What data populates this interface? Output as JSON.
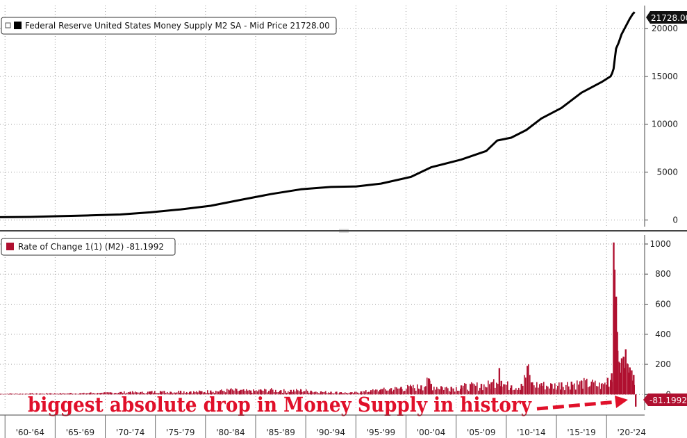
{
  "colors": {
    "m2_line": "#000000",
    "roc_bars": "#b01030",
    "annotation": "#e0102a",
    "grid": "#9a9a9a",
    "tag_top_bg": "#111111",
    "tag_bottom_bg": "#b01030",
    "divider": "#444444"
  },
  "chart_data": [
    {
      "type": "line",
      "title": "",
      "legend": "Federal Reserve United States Money Supply M2 SA - Mid Price 21728.00",
      "legend_placement": "top-left",
      "last_value_tag": "21728.00",
      "series": [
        {
          "name": "Federal Reserve United States Money Supply M2 SA - Mid Price",
          "x": [
            1959.0,
            1962.0,
            1965.0,
            1968.0,
            1971.0,
            1974.0,
            1977.0,
            1980.0,
            1983.0,
            1986.0,
            1989.0,
            1992.0,
            1994.5,
            1997.0,
            2000.0,
            2002.0,
            2005.0,
            2007.5,
            2008.6,
            2010.0,
            2011.5,
            2013.0,
            2015.0,
            2017.0,
            2019.0,
            2019.9,
            2020.05,
            2020.2,
            2020.45,
            2020.7,
            2021.0,
            2021.4,
            2021.8,
            2022.1,
            2022.3
          ],
          "y": [
            290,
            320,
            400,
            480,
            570,
            800,
            1100,
            1480,
            2100,
            2700,
            3200,
            3450,
            3500,
            3800,
            4500,
            5500,
            6300,
            7200,
            8300,
            8600,
            9400,
            10600,
            11700,
            13300,
            14400,
            15000,
            15300,
            15800,
            17900,
            18500,
            19400,
            20200,
            21000,
            21500,
            21728
          ]
        }
      ],
      "y_ticks": [
        "0",
        "5000",
        "10000",
        "15000",
        "20000"
      ],
      "ylim": [
        -700,
        22400
      ],
      "grid": true
    },
    {
      "type": "bar",
      "title": "",
      "legend": "Rate of Change 1(1) (M2) -81.1992",
      "legend_placement": "top-left",
      "last_value_tag": "-81.1992",
      "series": [
        {
          "name": "Rate of Change 1(1) (M2)",
          "x": [
            1959.0,
            1960.0,
            1961.0,
            1962.0,
            1963.0,
            1964.0,
            1965.0,
            1966.0,
            1967.0,
            1968.0,
            1969.0,
            1970.0,
            1971.0,
            1972.0,
            1973.0,
            1974.0,
            1975.0,
            1976.0,
            1977.0,
            1978.0,
            1979.0,
            1980.0,
            1981.0,
            1982.0,
            1983.0,
            1984.0,
            1985.0,
            1986.0,
            1987.0,
            1988.0,
            1989.0,
            1990.0,
            1991.0,
            1992.0,
            1993.0,
            1994.0,
            1995.0,
            1996.0,
            1997.0,
            1998.0,
            1999.0,
            2000.0,
            2001.0,
            2001.8,
            2002.0,
            2003.0,
            2004.0,
            2005.0,
            2006.0,
            2007.0,
            2008.0,
            2008.8,
            2009.0,
            2010.0,
            2011.0,
            2011.6,
            2012.0,
            2013.0,
            2014.0,
            2015.0,
            2016.0,
            2017.0,
            2018.0,
            2019.0,
            2019.6,
            2020.0,
            2020.2,
            2020.3,
            2020.45,
            2020.6,
            2020.8,
            2021.0,
            2021.2,
            2021.4,
            2021.6,
            2021.8,
            2022.0,
            2022.2,
            2022.4
          ],
          "values": [
            4,
            6,
            5,
            7,
            6,
            8,
            7,
            9,
            8,
            12,
            10,
            14,
            16,
            18,
            15,
            20,
            22,
            18,
            24,
            20,
            22,
            26,
            28,
            35,
            30,
            26,
            32,
            34,
            28,
            30,
            32,
            25,
            20,
            18,
            15,
            12,
            20,
            28,
            35,
            42,
            50,
            55,
            60,
            105,
            70,
            55,
            50,
            60,
            65,
            70,
            80,
            175,
            90,
            60,
            70,
            190,
            80,
            75,
            70,
            80,
            85,
            90,
            85,
            70,
            110,
            140,
            1010,
            830,
            650,
            290,
            210,
            240,
            250,
            300,
            200,
            180,
            160,
            130,
            -81.2
          ]
        }
      ],
      "y_ticks": [
        "0",
        "200",
        "400",
        "600",
        "800",
        "1000"
      ],
      "ylim": [
        -105,
        1060
      ],
      "grid": true
    }
  ],
  "x_axis": {
    "ticks": [
      "'60-'64",
      "'65-'69",
      "'70-'74",
      "'75-'79",
      "'80-'84",
      "'85-'89",
      "'90-'94",
      "'95-'99",
      "'00-'04",
      "'05-'09",
      "'10-'14",
      "'15-'19",
      "'20-'24"
    ],
    "range": [
      1959.0,
      2023.3
    ]
  },
  "annotation": {
    "text": "biggest absolute drop in Money Supply in history"
  }
}
